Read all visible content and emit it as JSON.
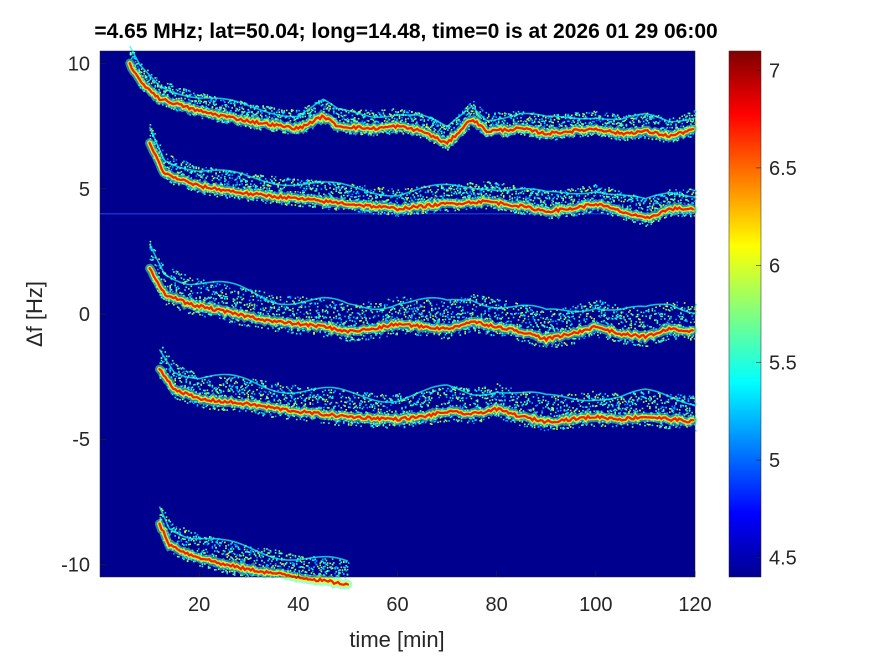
{
  "chart_data": {
    "type": "heatmap",
    "title": "=4.65 MHz;  lat=50.04; long=14.48, time=0 is at 2026 01 29 06:00",
    "xlabel": "time [min]",
    "ylabel": "Δf [Hz]",
    "xlim": [
      0,
      120
    ],
    "ylim": [
      -10.5,
      10.5
    ],
    "xticks": [
      20,
      40,
      60,
      80,
      100,
      120
    ],
    "yticks": [
      10,
      5,
      0,
      -5,
      -10
    ],
    "colorbar": {
      "ticks": [
        7,
        6.5,
        6,
        5.5,
        5,
        4.5
      ],
      "range": [
        4.4,
        7.1
      ],
      "colormap": "jet"
    },
    "grid": false,
    "background_color": "#00008f",
    "carrier_line_freq": 4.0,
    "series": [
      {
        "main_trace": [
          [
            6,
            10
          ],
          [
            8,
            9.3
          ],
          [
            12,
            8.6
          ],
          [
            20,
            8.1
          ],
          [
            30,
            7.7
          ],
          [
            40,
            7.4
          ],
          [
            45,
            7.9
          ],
          [
            48,
            7.5
          ],
          [
            55,
            7.4
          ],
          [
            60,
            7.5
          ],
          [
            65,
            7.3
          ],
          [
            70,
            6.8
          ],
          [
            73,
            7.4
          ],
          [
            75,
            7.8
          ],
          [
            78,
            7.3
          ],
          [
            85,
            7.4
          ],
          [
            90,
            7.2
          ],
          [
            95,
            7.3
          ],
          [
            100,
            7.4
          ],
          [
            105,
            7.2
          ],
          [
            110,
            7.3
          ],
          [
            115,
            7.1
          ],
          [
            120,
            7.4
          ]
        ],
        "echo_offset": 0.7,
        "strength": 1.0
      },
      {
        "main_trace": [
          [
            10,
            6.8
          ],
          [
            13,
            5.6
          ],
          [
            20,
            5.1
          ],
          [
            30,
            4.8
          ],
          [
            40,
            4.6
          ],
          [
            50,
            4.4
          ],
          [
            60,
            4.2
          ],
          [
            65,
            4.3
          ],
          [
            70,
            4.4
          ],
          [
            78,
            4.5
          ],
          [
            85,
            4.3
          ],
          [
            90,
            4.1
          ],
          [
            95,
            4.2
          ],
          [
            100,
            4.4
          ],
          [
            105,
            4.1
          ],
          [
            110,
            3.8
          ],
          [
            115,
            4.2
          ],
          [
            120,
            4.2
          ]
        ],
        "echo_offset": 0.8,
        "strength": 0.9
      },
      {
        "main_trace": [
          [
            10,
            1.8
          ],
          [
            13,
            0.8
          ],
          [
            18,
            0.4
          ],
          [
            25,
            0.1
          ],
          [
            30,
            -0.1
          ],
          [
            35,
            -0.3
          ],
          [
            40,
            -0.4
          ],
          [
            45,
            -0.5
          ],
          [
            50,
            -0.7
          ],
          [
            55,
            -0.6
          ],
          [
            60,
            -0.4
          ],
          [
            65,
            -0.5
          ],
          [
            70,
            -0.6
          ],
          [
            75,
            -0.3
          ],
          [
            80,
            -0.5
          ],
          [
            85,
            -0.7
          ],
          [
            90,
            -1.0
          ],
          [
            95,
            -0.8
          ],
          [
            100,
            -0.5
          ],
          [
            105,
            -0.8
          ],
          [
            110,
            -0.9
          ],
          [
            115,
            -0.6
          ],
          [
            120,
            -0.7
          ]
        ],
        "echo_offset": 1.2,
        "strength": 1.0
      },
      {
        "main_trace": [
          [
            12,
            -2.2
          ],
          [
            15,
            -3.0
          ],
          [
            20,
            -3.4
          ],
          [
            30,
            -3.6
          ],
          [
            40,
            -3.9
          ],
          [
            50,
            -4.1
          ],
          [
            60,
            -4.2
          ],
          [
            65,
            -4.1
          ],
          [
            70,
            -3.9
          ],
          [
            75,
            -4.0
          ],
          [
            80,
            -3.8
          ],
          [
            85,
            -4.1
          ],
          [
            90,
            -4.3
          ],
          [
            95,
            -4.2
          ],
          [
            100,
            -4.1
          ],
          [
            105,
            -4.2
          ],
          [
            110,
            -4.1
          ],
          [
            115,
            -4.2
          ],
          [
            120,
            -4.3
          ]
        ],
        "echo_offset": 1.1,
        "strength": 0.95
      },
      {
        "main_trace": [
          [
            12,
            -8.4
          ],
          [
            14,
            -9.2
          ],
          [
            18,
            -9.6
          ],
          [
            25,
            -10.0
          ],
          [
            30,
            -10.2
          ],
          [
            40,
            -10.5
          ],
          [
            50,
            -10.8
          ]
        ],
        "echo_offset": 1.0,
        "strength": 0.9
      }
    ]
  }
}
